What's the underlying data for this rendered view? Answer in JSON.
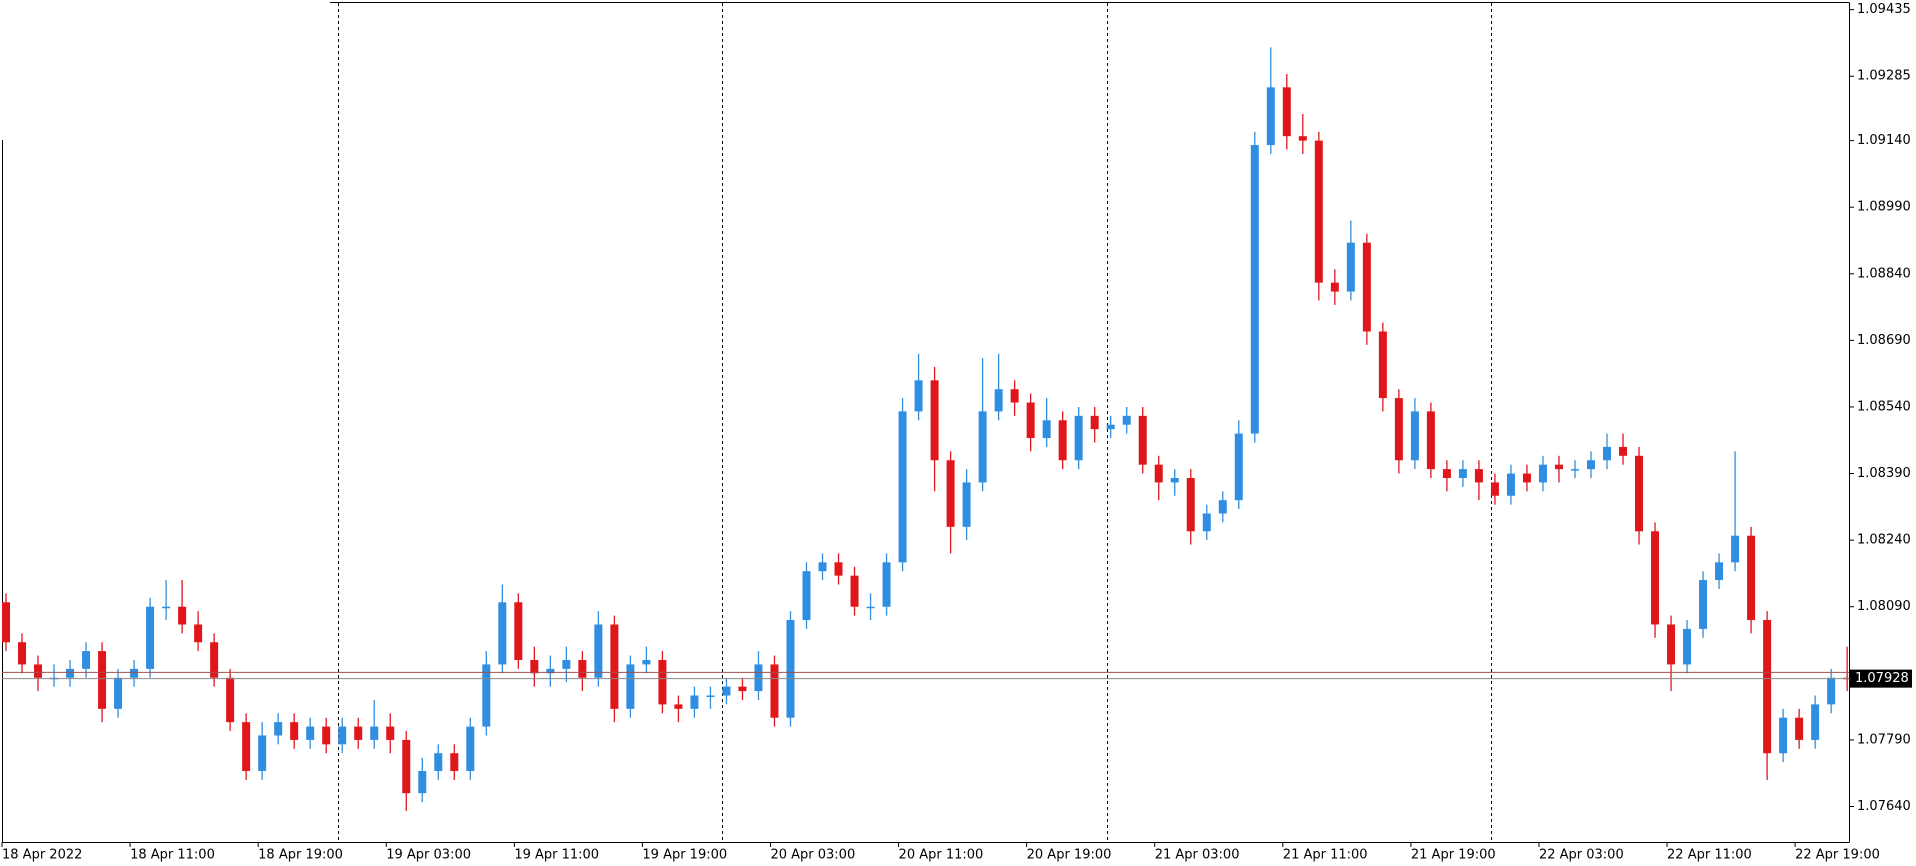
{
  "chart_data": {
    "type": "candlestick",
    "x": [
      "18 Apr 03:00",
      "18 Apr 04:00",
      "18 Apr 05:00",
      "18 Apr 06:00",
      "18 Apr 07:00",
      "18 Apr 08:00",
      "18 Apr 09:00",
      "18 Apr 10:00",
      "18 Apr 11:00",
      "18 Apr 12:00",
      "18 Apr 13:00",
      "18 Apr 14:00",
      "18 Apr 15:00",
      "18 Apr 16:00",
      "18 Apr 17:00",
      "18 Apr 18:00",
      "18 Apr 19:00",
      "18 Apr 20:00",
      "18 Apr 21:00",
      "18 Apr 22:00",
      "18 Apr 23:00",
      "19 Apr 00:00",
      "19 Apr 01:00",
      "19 Apr 02:00",
      "19 Apr 03:00",
      "19 Apr 04:00",
      "19 Apr 05:00",
      "19 Apr 06:00",
      "19 Apr 07:00",
      "19 Apr 08:00",
      "19 Apr 09:00",
      "19 Apr 10:00",
      "19 Apr 11:00",
      "19 Apr 12:00",
      "19 Apr 13:00",
      "19 Apr 14:00",
      "19 Apr 15:00",
      "19 Apr 16:00",
      "19 Apr 17:00",
      "19 Apr 18:00",
      "19 Apr 19:00",
      "19 Apr 20:00",
      "19 Apr 21:00",
      "19 Apr 22:00",
      "19 Apr 23:00",
      "20 Apr 00:00",
      "20 Apr 01:00",
      "20 Apr 02:00",
      "20 Apr 03:00",
      "20 Apr 04:00",
      "20 Apr 05:00",
      "20 Apr 06:00",
      "20 Apr 07:00",
      "20 Apr 08:00",
      "20 Apr 09:00",
      "20 Apr 10:00",
      "20 Apr 11:00",
      "20 Apr 12:00",
      "20 Apr 13:00",
      "20 Apr 14:00",
      "20 Apr 15:00",
      "20 Apr 16:00",
      "20 Apr 17:00",
      "20 Apr 18:00",
      "20 Apr 19:00",
      "20 Apr 20:00",
      "20 Apr 21:00",
      "20 Apr 22:00",
      "20 Apr 23:00",
      "21 Apr 00:00",
      "21 Apr 01:00",
      "21 Apr 02:00",
      "21 Apr 03:00",
      "21 Apr 04:00",
      "21 Apr 05:00",
      "21 Apr 06:00",
      "21 Apr 07:00",
      "21 Apr 08:00",
      "21 Apr 09:00",
      "21 Apr 10:00",
      "21 Apr 11:00",
      "21 Apr 12:00",
      "21 Apr 13:00",
      "21 Apr 14:00",
      "21 Apr 15:00",
      "21 Apr 16:00",
      "21 Apr 17:00",
      "21 Apr 18:00",
      "21 Apr 19:00",
      "21 Apr 20:00",
      "21 Apr 21:00",
      "21 Apr 22:00",
      "21 Apr 23:00",
      "22 Apr 00:00",
      "22 Apr 01:00",
      "22 Apr 02:00",
      "22 Apr 03:00",
      "22 Apr 04:00",
      "22 Apr 05:00",
      "22 Apr 06:00",
      "22 Apr 07:00",
      "22 Apr 08:00",
      "22 Apr 09:00",
      "22 Apr 10:00",
      "22 Apr 11:00",
      "22 Apr 12:00",
      "22 Apr 13:00",
      "22 Apr 14:00",
      "22 Apr 15:00",
      "22 Apr 16:00",
      "22 Apr 17:00",
      "22 Apr 18:00",
      "22 Apr 19:00",
      "22 Apr 20:00",
      "22 Apr 21:00",
      "22 Apr 22:00"
    ],
    "open": [
      1.081,
      1.0801,
      1.0796,
      1.0793,
      1.0793,
      1.0795,
      1.0799,
      1.0786,
      1.0793,
      1.0795,
      1.0809,
      1.0809,
      1.0805,
      1.0801,
      1.0793,
      1.0783,
      1.0772,
      1.078,
      1.0783,
      1.0779,
      1.0782,
      1.0778,
      1.0782,
      1.0779,
      1.0782,
      1.0779,
      1.0767,
      1.0772,
      1.0776,
      1.0772,
      1.0782,
      1.0796,
      1.081,
      1.0797,
      1.0794,
      1.0795,
      1.0797,
      1.0793,
      1.0805,
      1.0786,
      1.0796,
      1.0797,
      1.0787,
      1.0786,
      1.0789,
      1.0789,
      1.0791,
      1.079,
      1.0796,
      1.0784,
      1.0806,
      1.0817,
      1.0819,
      1.0816,
      1.0809,
      1.0809,
      1.0819,
      1.0853,
      1.086,
      1.0842,
      1.0827,
      1.0837,
      1.0853,
      1.0858,
      1.0855,
      1.0847,
      1.0851,
      1.0842,
      1.0852,
      1.0849,
      1.085,
      1.0852,
      1.0841,
      1.0837,
      1.0838,
      1.0826,
      1.083,
      1.0833,
      1.0848,
      1.0913,
      1.0926,
      1.0915,
      1.0914,
      1.0882,
      1.088,
      1.0891,
      1.0871,
      1.0856,
      1.0842,
      1.0853,
      1.084,
      1.0838,
      1.084,
      1.0837,
      1.0834,
      1.0839,
      1.0837,
      1.0841,
      1.084,
      1.084,
      1.0842,
      1.0845,
      1.0843,
      1.0826,
      1.0805,
      1.0796,
      1.0804,
      1.0815,
      1.0819,
      1.0825,
      1.0806,
      1.0776,
      1.0784,
      1.0779,
      1.0787,
      1.0793
    ],
    "high": [
      1.0812,
      1.0803,
      1.0798,
      1.0796,
      1.0797,
      1.0801,
      1.0801,
      1.0795,
      1.0797,
      1.0811,
      1.0815,
      1.0815,
      1.0808,
      1.0803,
      1.0795,
      1.0785,
      1.0783,
      1.0785,
      1.0785,
      1.0784,
      1.0784,
      1.0784,
      1.0784,
      1.0788,
      1.0785,
      1.0781,
      1.0775,
      1.0778,
      1.0778,
      1.0784,
      1.0799,
      1.0814,
      1.0812,
      1.08,
      1.0798,
      1.08,
      1.0799,
      1.0808,
      1.0807,
      1.0798,
      1.08,
      1.0799,
      1.0789,
      1.0791,
      1.0791,
      1.0793,
      1.0793,
      1.0799,
      1.0798,
      1.0808,
      1.0819,
      1.0821,
      1.0821,
      1.0818,
      1.0812,
      1.0821,
      1.0856,
      1.0866,
      1.0863,
      1.0844,
      1.084,
      1.0865,
      1.0866,
      1.086,
      1.0857,
      1.0856,
      1.0853,
      1.0854,
      1.0854,
      1.0852,
      1.0854,
      1.0854,
      1.0843,
      1.084,
      1.084,
      1.0832,
      1.0835,
      1.0851,
      1.0916,
      1.0935,
      1.0929,
      1.092,
      1.0916,
      1.0885,
      1.0896,
      1.0893,
      1.0873,
      1.0858,
      1.0856,
      1.0855,
      1.0842,
      1.0842,
      1.0842,
      1.0839,
      1.0841,
      1.0841,
      1.0843,
      1.0843,
      1.0842,
      1.0844,
      1.0848,
      1.0848,
      1.0845,
      1.0828,
      1.0807,
      1.0806,
      1.0817,
      1.0821,
      1.0844,
      1.0827,
      1.0808,
      1.0786,
      1.0786,
      1.0789,
      1.0795,
      1.08
    ],
    "low": [
      1.0799,
      1.0794,
      1.079,
      1.0791,
      1.0791,
      1.0793,
      1.0783,
      1.0784,
      1.0791,
      1.0793,
      1.0806,
      1.0803,
      1.0799,
      1.0791,
      1.0781,
      1.077,
      1.077,
      1.0778,
      1.0777,
      1.0777,
      1.0776,
      1.0776,
      1.0777,
      1.0777,
      1.0776,
      1.0763,
      1.0765,
      1.077,
      1.077,
      1.077,
      1.078,
      1.0794,
      1.0795,
      1.0791,
      1.0791,
      1.0792,
      1.079,
      1.0791,
      1.0783,
      1.0784,
      1.0794,
      1.0785,
      1.0783,
      1.0784,
      1.0786,
      1.0787,
      1.0788,
      1.0788,
      1.0782,
      1.0782,
      1.0804,
      1.0815,
      1.0814,
      1.0807,
      1.0806,
      1.0807,
      1.0817,
      1.0851,
      1.0835,
      1.0821,
      1.0824,
      1.0835,
      1.0851,
      1.0852,
      1.0844,
      1.0845,
      1.084,
      1.084,
      1.0846,
      1.0847,
      1.0848,
      1.0839,
      1.0833,
      1.0834,
      1.0823,
      1.0824,
      1.0828,
      1.0831,
      1.0846,
      1.0911,
      1.0912,
      1.0911,
      1.0878,
      1.0877,
      1.0878,
      1.0868,
      1.0853,
      1.0839,
      1.084,
      1.0838,
      1.0835,
      1.0836,
      1.0833,
      1.0832,
      1.0832,
      1.0835,
      1.0835,
      1.0837,
      1.0838,
      1.0838,
      1.084,
      1.0841,
      1.0823,
      1.0802,
      1.079,
      1.0794,
      1.0802,
      1.0813,
      1.0817,
      1.0803,
      1.077,
      1.0774,
      1.0777,
      1.0777,
      1.0785,
      1.079
    ],
    "close": [
      1.0801,
      1.0796,
      1.0793,
      1.0793,
      1.0795,
      1.0799,
      1.0786,
      1.0793,
      1.0795,
      1.0809,
      1.0809,
      1.0805,
      1.0801,
      1.0793,
      1.0783,
      1.0772,
      1.078,
      1.0783,
      1.0779,
      1.0782,
      1.0778,
      1.0782,
      1.0779,
      1.0782,
      1.0779,
      1.0767,
      1.0772,
      1.0776,
      1.0772,
      1.0782,
      1.0796,
      1.081,
      1.0797,
      1.0794,
      1.0795,
      1.0797,
      1.0793,
      1.0805,
      1.0786,
      1.0796,
      1.0797,
      1.0787,
      1.0786,
      1.0789,
      1.0789,
      1.0791,
      1.079,
      1.0796,
      1.0784,
      1.0806,
      1.0817,
      1.0819,
      1.0816,
      1.0809,
      1.0809,
      1.0819,
      1.0853,
      1.086,
      1.0842,
      1.0827,
      1.0837,
      1.0853,
      1.0858,
      1.0855,
      1.0847,
      1.0851,
      1.0842,
      1.0852,
      1.0849,
      1.085,
      1.0852,
      1.0841,
      1.0837,
      1.0838,
      1.0826,
      1.083,
      1.0833,
      1.0848,
      1.0913,
      1.0926,
      1.0915,
      1.0914,
      1.0882,
      1.088,
      1.0891,
      1.0871,
      1.0856,
      1.0842,
      1.0853,
      1.084,
      1.0838,
      1.084,
      1.0837,
      1.0834,
      1.0839,
      1.0837,
      1.0841,
      1.084,
      1.084,
      1.0842,
      1.0845,
      1.0843,
      1.0826,
      1.0805,
      1.0796,
      1.0804,
      1.0815,
      1.0819,
      1.0825,
      1.0806,
      1.0776,
      1.0784,
      1.0779,
      1.0787,
      1.0793,
      1.07928
    ],
    "up_color": "#2f8ee0",
    "down_color": "#e0161b",
    "ylim": [
      1.0756,
      1.0945
    ],
    "yticks": [
      1.09435,
      1.09285,
      {
        "value": 1.0914,
        "label": "1.09140"
      },
      {
        "value": 1.0899,
        "label": "1.08990"
      },
      {
        "value": 1.0884,
        "label": "1.08840"
      },
      {
        "value": 1.0869,
        "label": "1.08690"
      },
      {
        "value": 1.0854,
        "label": "1.08540"
      },
      {
        "value": 1.0839,
        "label": "1.08390"
      },
      {
        "value": 1.0824,
        "label": "1.08240"
      },
      {
        "value": 1.0809,
        "label": "1.08090"
      },
      {
        "value": 1.0779,
        "label": "1.07790"
      },
      {
        "value": 1.0764,
        "label": "1.07640"
      }
    ],
    "xticks": [
      {
        "value": "18 Apr 03:00",
        "label": "18 Apr 2022"
      },
      "18 Apr 11:00",
      "18 Apr 19:00",
      "19 Apr 03:00",
      "19 Apr 11:00",
      "19 Apr 19:00",
      "20 Apr 03:00",
      "20 Apr 11:00",
      "20 Apr 19:00",
      "21 Apr 03:00",
      "21 Apr 11:00",
      "21 Apr 19:00",
      "22 Apr 03:00",
      "22 Apr 11:00",
      "22 Apr 19:00"
    ],
    "period_separators": true,
    "last_price": 1.07928,
    "ask": 1.07942
  }
}
